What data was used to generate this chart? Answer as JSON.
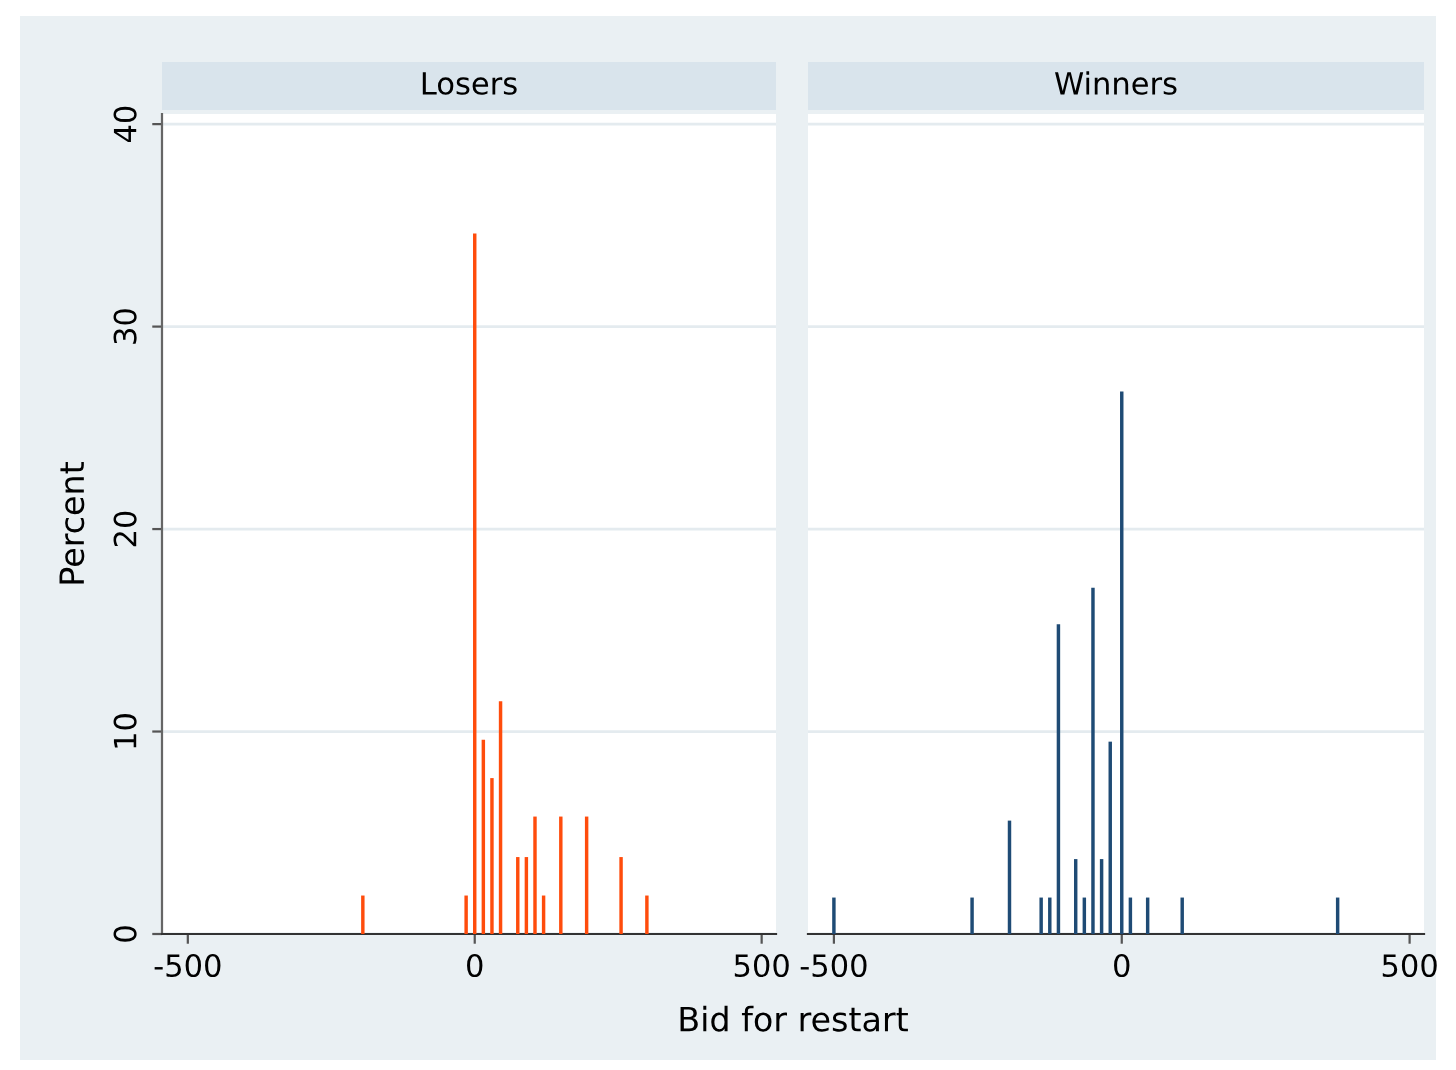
{
  "chart_data": [
    {
      "type": "bar",
      "title": "Losers",
      "xlabel": "Bid for restart",
      "ylabel": "Percent",
      "x": [
        -195,
        -15,
        0,
        15,
        30,
        45,
        75,
        90,
        105,
        120,
        150,
        195,
        255,
        300
      ],
      "series": [
        {
          "color": "#ff4c0c",
          "values": [
            1.9,
            1.9,
            34.6,
            9.6,
            7.7,
            11.5,
            3.8,
            3.8,
            5.8,
            1.9,
            5.8,
            5.8,
            3.8,
            1.9
          ]
        }
      ],
      "xlim": [
        -545,
        525
      ],
      "xticks": [
        -500,
        0,
        500
      ],
      "ylim": [
        0,
        40.5
      ],
      "yticks": [
        0,
        10,
        20,
        30,
        40
      ],
      "grid": "y"
    },
    {
      "type": "bar",
      "title": "Winners",
      "x": [
        -500,
        -260,
        -195,
        -140,
        -125,
        -110,
        -80,
        -65,
        -50,
        -35,
        -20,
        0,
        15,
        45,
        105,
        375
      ],
      "series": [
        {
          "color": "#1f4b75",
          "values": [
            1.8,
            1.8,
            5.6,
            1.8,
            1.8,
            15.3,
            3.7,
            1.8,
            17.1,
            3.7,
            9.5,
            26.8,
            1.8,
            1.8,
            1.8,
            1.8
          ]
        }
      ],
      "xlim": [
        -545,
        525
      ],
      "xticks": [
        -500,
        0,
        500
      ],
      "ylim": [
        0,
        40.5
      ],
      "yticks": [
        0,
        10,
        20,
        30,
        40
      ],
      "grid": "y",
      "tick_labels": "x"
    }
  ]
}
